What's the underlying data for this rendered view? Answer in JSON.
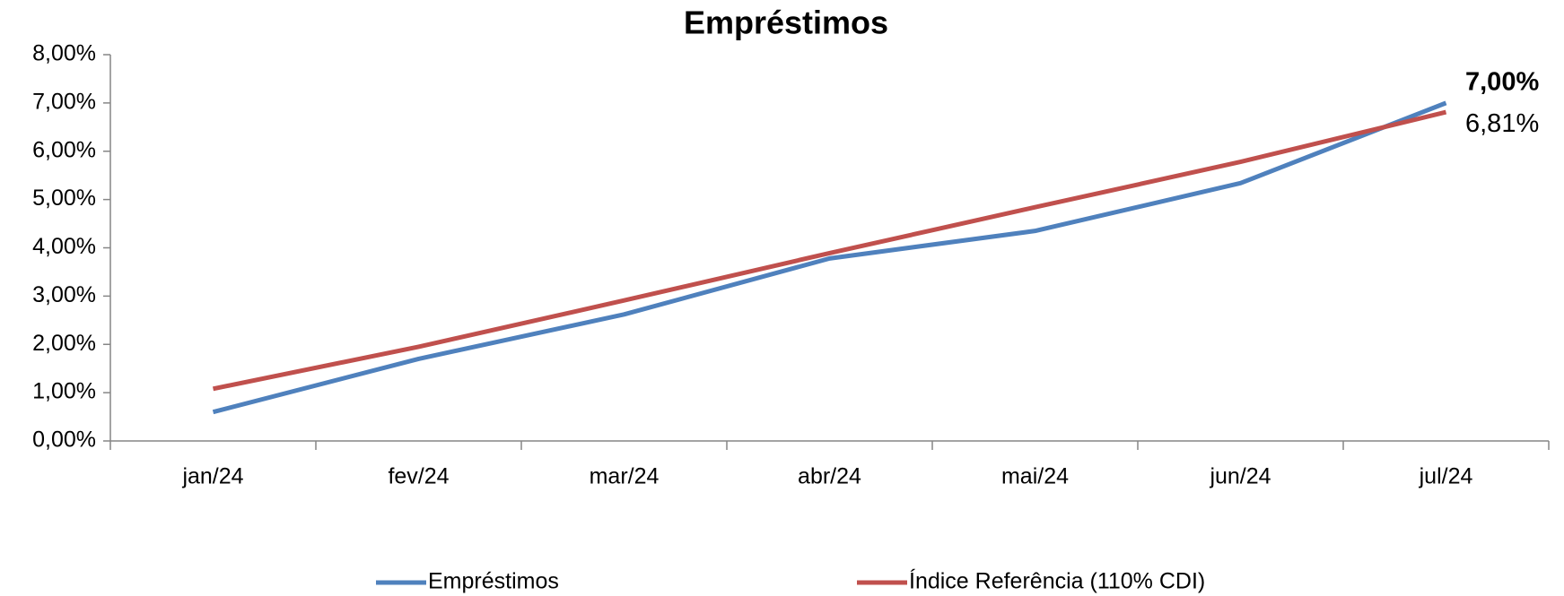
{
  "chart_data": {
    "type": "line",
    "title": "Empréstimos",
    "categories": [
      "jan/24",
      "fev/24",
      "mar/24",
      "abr/24",
      "mai/24",
      "jun/24",
      "jul/24"
    ],
    "series": [
      {
        "name": "Empréstimos",
        "color": "#4f81bd",
        "label_color": "#1f497d",
        "values": [
          0.6,
          1.7,
          2.62,
          3.78,
          4.35,
          5.34,
          7.0
        ],
        "value_labels": [
          null,
          null,
          null,
          null,
          null,
          null,
          "7,00%"
        ]
      },
      {
        "name": "Índice Referência (110% CDI)",
        "color": "#c0504d",
        "label_color": "#ff0000",
        "values": [
          1.08,
          1.95,
          2.91,
          3.89,
          4.84,
          5.78,
          6.81
        ],
        "value_labels": [
          null,
          null,
          null,
          null,
          null,
          null,
          "6,81%"
        ]
      }
    ],
    "ylim": [
      0,
      8
    ],
    "yticks": [
      {
        "value": 0,
        "label": "0,00%"
      },
      {
        "value": 1,
        "label": "1,00%"
      },
      {
        "value": 2,
        "label": "2,00%"
      },
      {
        "value": 3,
        "label": "3,00%"
      },
      {
        "value": 4,
        "label": "4,00%"
      },
      {
        "value": 5,
        "label": "5,00%"
      },
      {
        "value": 6,
        "label": "6,00%"
      },
      {
        "value": 7,
        "label": "7,00%"
      },
      {
        "value": 8,
        "label": "8,00%"
      }
    ],
    "grid": false,
    "legend": "bottom"
  }
}
